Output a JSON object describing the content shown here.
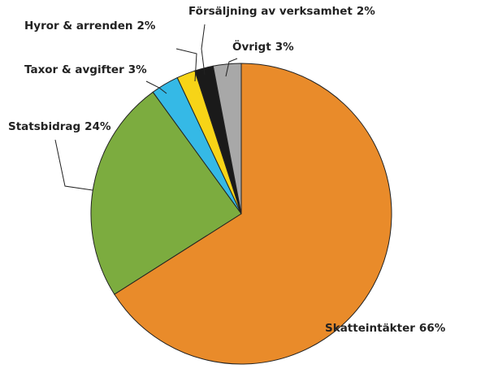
{
  "chart_data": {
    "type": "pie",
    "categories": [
      "Skatteintäkter",
      "Statsbidrag",
      "Taxor & avgifter",
      "Hyror & arrenden",
      "Försäljning av verksamhet",
      "Övrigt"
    ],
    "values": [
      66,
      24,
      3,
      2,
      2,
      3
    ],
    "value_labels": [
      "66%",
      "24%",
      "3%",
      "2%",
      "2%",
      "3%"
    ],
    "colors": [
      "#e98b2a",
      "#7cac3f",
      "#35b9e6",
      "#f7d417",
      "#1a1a1a",
      "#a8a8a8"
    ]
  }
}
